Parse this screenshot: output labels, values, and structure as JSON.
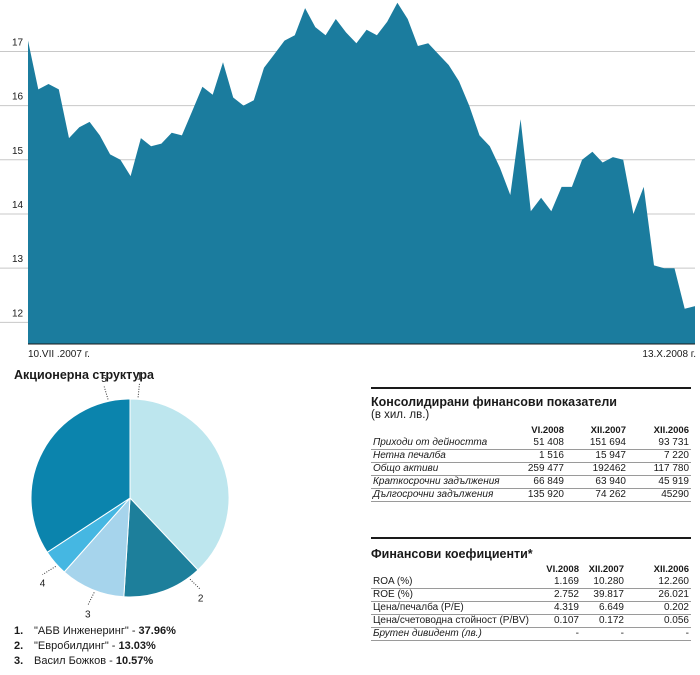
{
  "chart_data": [
    {
      "type": "area",
      "y_ticks": [
        "17",
        "16",
        "15",
        "14",
        "13",
        "12"
      ],
      "y_tick_values": [
        17,
        16,
        15,
        14,
        13,
        12
      ],
      "ylim": [
        11.6,
        17.95
      ],
      "x_start_label": "10.VII .2007 г.",
      "x_end_label": "13.X.2008 г.",
      "color": "#1b7c9e",
      "values": [
        17.2,
        16.3,
        16.4,
        16.3,
        15.4,
        15.6,
        15.7,
        15.45,
        15.1,
        15.0,
        14.7,
        15.4,
        15.25,
        15.3,
        15.5,
        15.45,
        15.9,
        16.35,
        16.2,
        16.8,
        16.15,
        16.0,
        16.1,
        16.7,
        16.95,
        17.2,
        17.3,
        17.8,
        17.45,
        17.3,
        17.6,
        17.35,
        17.15,
        17.4,
        17.3,
        17.55,
        17.9,
        17.6,
        17.1,
        17.15,
        16.95,
        16.75,
        16.45,
        16.0,
        15.45,
        15.25,
        14.85,
        14.35,
        15.75,
        14.05,
        14.3,
        14.05,
        14.5,
        14.5,
        15.0,
        15.15,
        14.95,
        15.05,
        15.0,
        14.0,
        14.5,
        13.05,
        13.0,
        13.0,
        12.25,
        12.3
      ]
    },
    {
      "type": "pie",
      "title": "Акционерна структура",
      "slices": [
        {
          "label": "1",
          "value": 37.96,
          "color": "#bde6ee"
        },
        {
          "label": "2",
          "value": 13.03,
          "color": "#1d7f9b"
        },
        {
          "label": "3",
          "value": 10.57,
          "color": "#a6d4ec"
        },
        {
          "label": "4",
          "value": 4.2,
          "color": "#45b7e2"
        },
        {
          "label": "5",
          "value": 34.24,
          "color": "#0b84ad"
        }
      ]
    }
  ],
  "legend": [
    {
      "n": "1.",
      "name": "\"АБВ Инженеринг\" - ",
      "pct": "37.96%"
    },
    {
      "n": "2.",
      "name": "\"Евробилдинг\" - ",
      "pct": "13.03%"
    },
    {
      "n": "3.",
      "name": "Васил Божков - ",
      "pct": "10.57%"
    }
  ],
  "fin_indicators": {
    "title": "Консолидирани финансови показатели",
    "subtitle": "(в хил. лв.)",
    "headers": [
      "VI.2008",
      "XII.2007",
      "XII.2006"
    ],
    "rows": [
      {
        "label": "Приходи от дейността",
        "values": [
          "51 408",
          "151 694",
          "93 731"
        ]
      },
      {
        "label": "Нетна печалба",
        "values": [
          "1 516",
          "15 947",
          "7 220"
        ]
      },
      {
        "label": "Общо активи",
        "values": [
          "259 477",
          "192462",
          "117 780"
        ]
      },
      {
        "label": "Краткосрочни задължения",
        "values": [
          "66 849",
          "63 940",
          "45 919"
        ]
      },
      {
        "label": "Дългосрочни задължения",
        "values": [
          "135 920",
          "74 262",
          "45290"
        ]
      }
    ]
  },
  "fin_ratios": {
    "title": "Финансови коефициенти*",
    "headers": [
      "VI.2008",
      "XII.2007",
      "XII.2006"
    ],
    "rows": [
      {
        "label": "ROA (%)",
        "values": [
          "1.169",
          "10.280",
          "12.260"
        ]
      },
      {
        "label": "ROE (%)",
        "values": [
          "2.752",
          "39.817",
          "26.021"
        ]
      },
      {
        "label": "Цена/печалба (P/E)",
        "values": [
          "4.319",
          "6.649",
          "0.202"
        ]
      },
      {
        "label": "Цена/счетоводна стойност (P/BV)",
        "values": [
          "0.107",
          "0.172",
          "0.056"
        ]
      },
      {
        "label": "Брутен дивидент (лв.)",
        "values": [
          "-",
          "-",
          "-"
        ]
      }
    ]
  }
}
